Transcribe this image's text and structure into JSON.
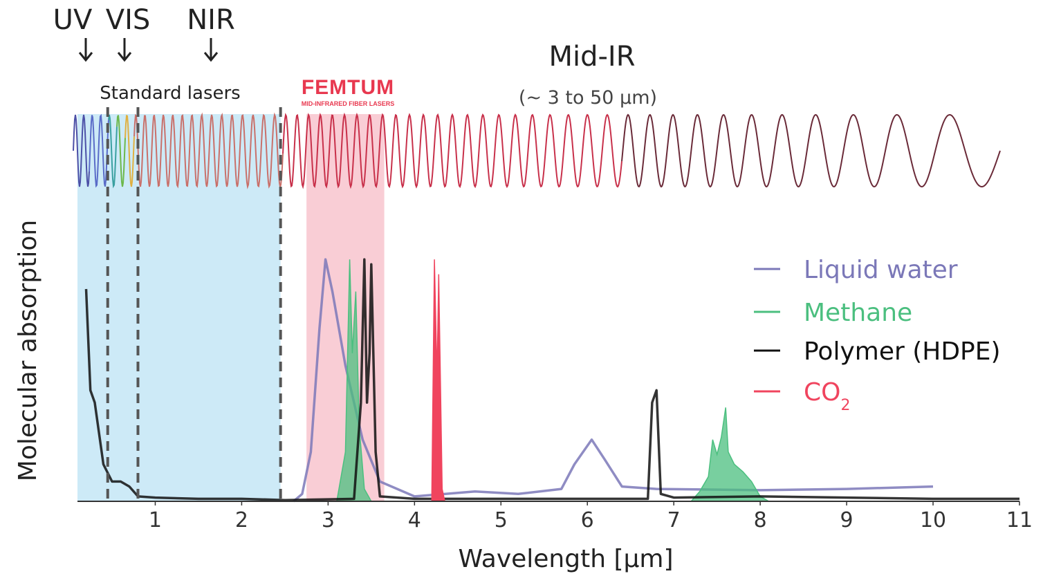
{
  "band_labels": {
    "uv": "UV",
    "vis": "VIS",
    "nir": "NIR",
    "mid_ir": "Mid-IR",
    "mid_ir_range": "(~ 3 to 50 μm)",
    "standard_lasers": "Standard lasers"
  },
  "logo": {
    "name": "FEMTUM",
    "tagline": "MID-INFRARED FIBER LASERS",
    "color": "#e8384f"
  },
  "colors": {
    "standard_lasers_band": "#cdeaf7",
    "femtum_band": "#f9cdd5",
    "axis": "#333333",
    "text": "#222222"
  },
  "chart_data": {
    "type": "line",
    "xlabel": "Wavelength [μm]",
    "ylabel": "Molecular absorption",
    "xlim": [
      0.1,
      11
    ],
    "ylim": [
      0,
      1
    ],
    "x_ticks": [
      1,
      2,
      3,
      4,
      5,
      6,
      7,
      8,
      9,
      10,
      11
    ],
    "grid": false,
    "legend_position": "right",
    "bands": [
      {
        "name": "standard-lasers",
        "x": [
          0.1,
          2.45
        ]
      },
      {
        "name": "femtum",
        "x": [
          2.75,
          3.65
        ]
      }
    ],
    "dashed_lines_x": [
      0.45,
      0.8,
      2.45
    ],
    "series": [
      {
        "name": "Liquid water",
        "color": "#7b78b8",
        "points": [
          [
            2.6,
            0
          ],
          [
            2.7,
            0.03
          ],
          [
            2.8,
            0.2
          ],
          [
            2.9,
            0.7
          ],
          [
            2.97,
            0.98
          ],
          [
            3.05,
            0.85
          ],
          [
            3.2,
            0.55
          ],
          [
            3.4,
            0.25
          ],
          [
            3.6,
            0.08
          ],
          [
            4,
            0.02
          ],
          [
            4.7,
            0.04
          ],
          [
            5.2,
            0.03
          ],
          [
            5.7,
            0.05
          ],
          [
            5.85,
            0.15
          ],
          [
            6.05,
            0.25
          ],
          [
            6.2,
            0.17
          ],
          [
            6.4,
            0.06
          ],
          [
            6.8,
            0.05
          ],
          [
            8,
            0.045
          ],
          [
            9,
            0.05
          ],
          [
            10,
            0.06
          ]
        ]
      },
      {
        "name": "Methane",
        "color": "#4bbf7f",
        "points": [
          [
            3.1,
            0
          ],
          [
            3.2,
            0.2
          ],
          [
            3.25,
            0.98
          ],
          [
            3.28,
            0.6
          ],
          [
            3.32,
            0.85
          ],
          [
            3.36,
            0.3
          ],
          [
            3.42,
            0.05
          ],
          [
            3.5,
            0
          ],
          [
            7.2,
            0
          ],
          [
            7.3,
            0.04
          ],
          [
            7.4,
            0.1
          ],
          [
            7.45,
            0.25
          ],
          [
            7.5,
            0.19
          ],
          [
            7.55,
            0.26
          ],
          [
            7.6,
            0.38
          ],
          [
            7.63,
            0.2
          ],
          [
            7.7,
            0.15
          ],
          [
            7.8,
            0.12
          ],
          [
            7.9,
            0.08
          ],
          [
            8.0,
            0.02
          ],
          [
            8.1,
            0
          ]
        ]
      },
      {
        "name": "Polymer (HDPE)",
        "color": "#111111",
        "points": [
          [
            0.2,
            0.86
          ],
          [
            0.25,
            0.45
          ],
          [
            0.3,
            0.4
          ],
          [
            0.4,
            0.15
          ],
          [
            0.5,
            0.08
          ],
          [
            0.6,
            0.08
          ],
          [
            0.7,
            0.06
          ],
          [
            0.8,
            0.02
          ],
          [
            1,
            0.015
          ],
          [
            1.5,
            0.01
          ],
          [
            2,
            0.01
          ],
          [
            2.5,
            0.005
          ],
          [
            3.3,
            0.01
          ],
          [
            3.38,
            0.4
          ],
          [
            3.42,
            0.98
          ],
          [
            3.45,
            0.4
          ],
          [
            3.48,
            0.6
          ],
          [
            3.5,
            0.96
          ],
          [
            3.55,
            0.2
          ],
          [
            3.6,
            0.02
          ],
          [
            4,
            0.01
          ],
          [
            6,
            0.01
          ],
          [
            6.7,
            0.01
          ],
          [
            6.75,
            0.4
          ],
          [
            6.8,
            0.45
          ],
          [
            6.85,
            0.03
          ],
          [
            7,
            0.015
          ],
          [
            8,
            0.02
          ],
          [
            9,
            0.015
          ],
          [
            10,
            0.01
          ],
          [
            11,
            0.01
          ]
        ]
      },
      {
        "name": "CO",
        "name_subscript": "2",
        "color": "#f0445e",
        "points": [
          [
            4.2,
            0.02
          ],
          [
            4.23,
            0.98
          ],
          [
            4.26,
            0.5
          ],
          [
            4.28,
            0.92
          ],
          [
            4.32,
            0.05
          ],
          [
            4.35,
            0
          ]
        ]
      }
    ]
  }
}
